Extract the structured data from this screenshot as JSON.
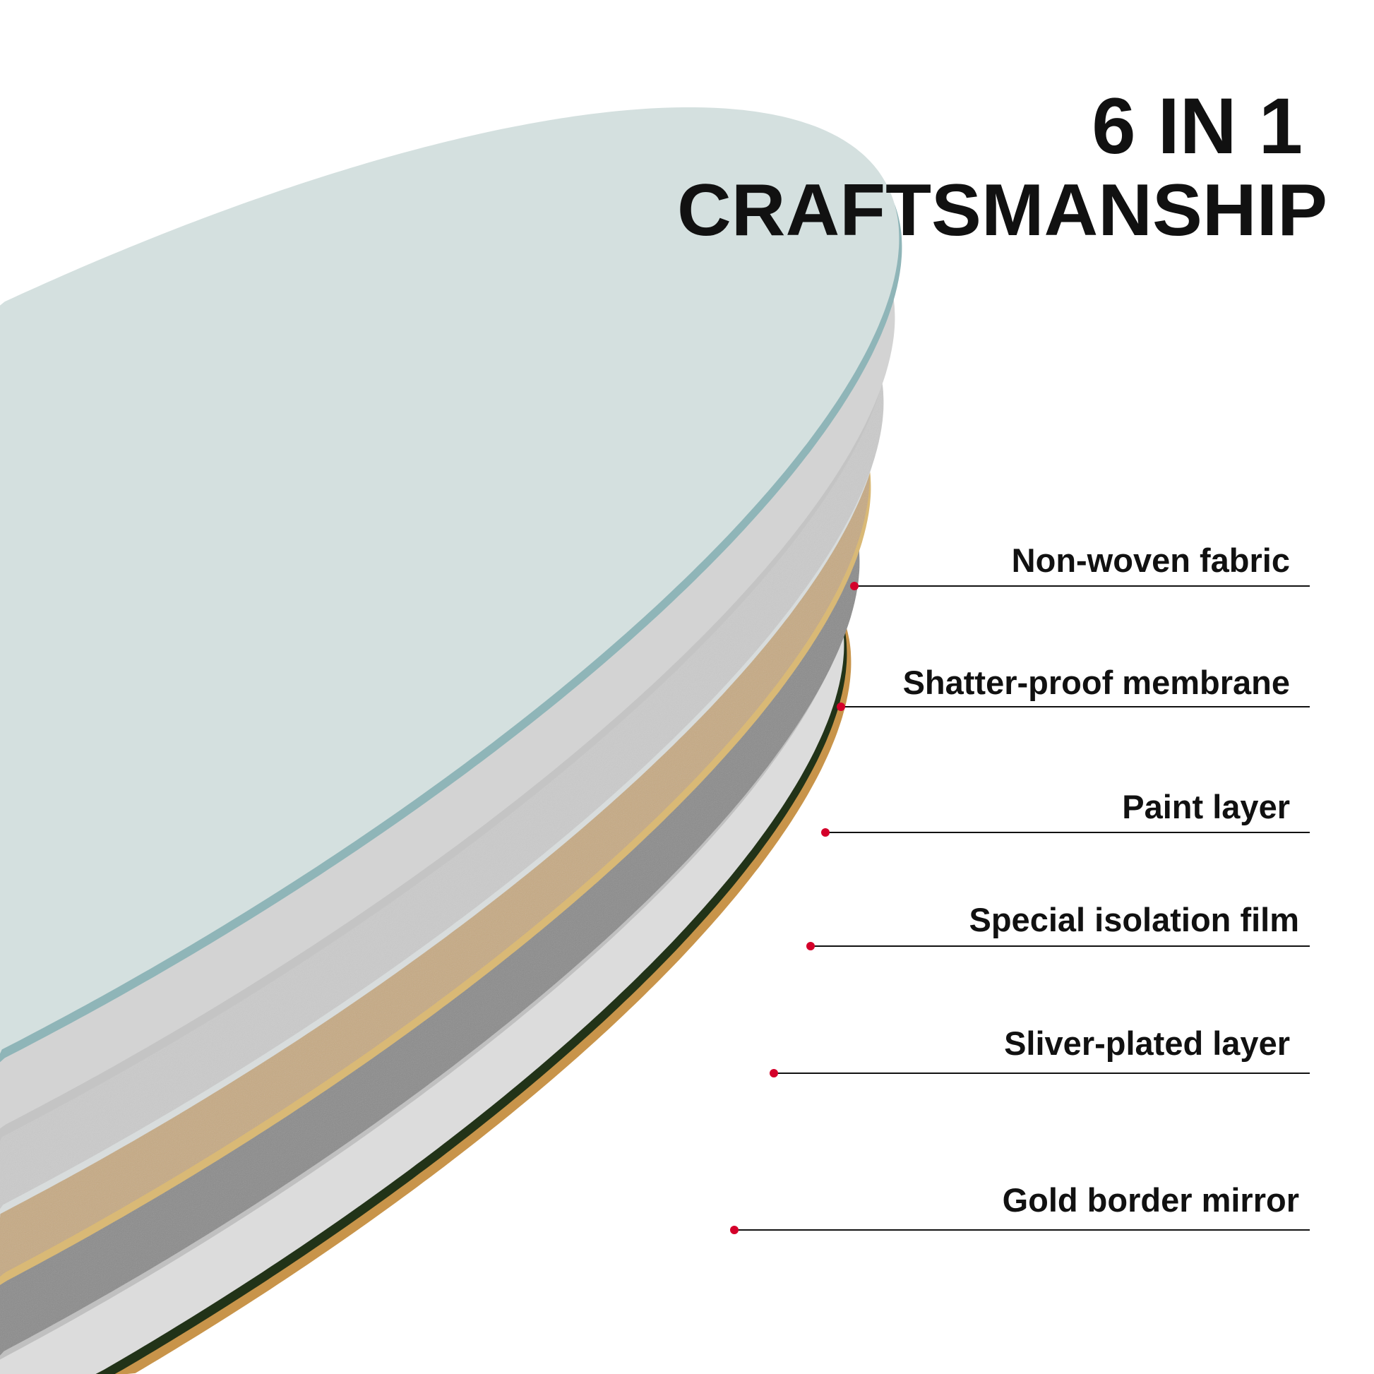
{
  "title": {
    "line1": "6 IN 1",
    "line2": "CRAFTSMANSHIP"
  },
  "layers": [
    {
      "label": "Non-woven fabric",
      "color": "#d3d3d3"
    },
    {
      "label": "Shatter-proof membrane",
      "color": "#cbcbcb"
    },
    {
      "label": "Paint layer",
      "color": "#c6aa84"
    },
    {
      "label": "Special isolation film",
      "color": "#8c8c8c"
    },
    {
      "label": "Sliver-plated layer",
      "color": "#dcdcdc"
    },
    {
      "label": "Gold border mirror",
      "color": "#c8944a"
    }
  ],
  "colors": {
    "glass_face": "#d4e0df",
    "glass_rim": "#8fb5b8",
    "pointer_dot": "#d4002a",
    "leader_line": "#111111"
  }
}
